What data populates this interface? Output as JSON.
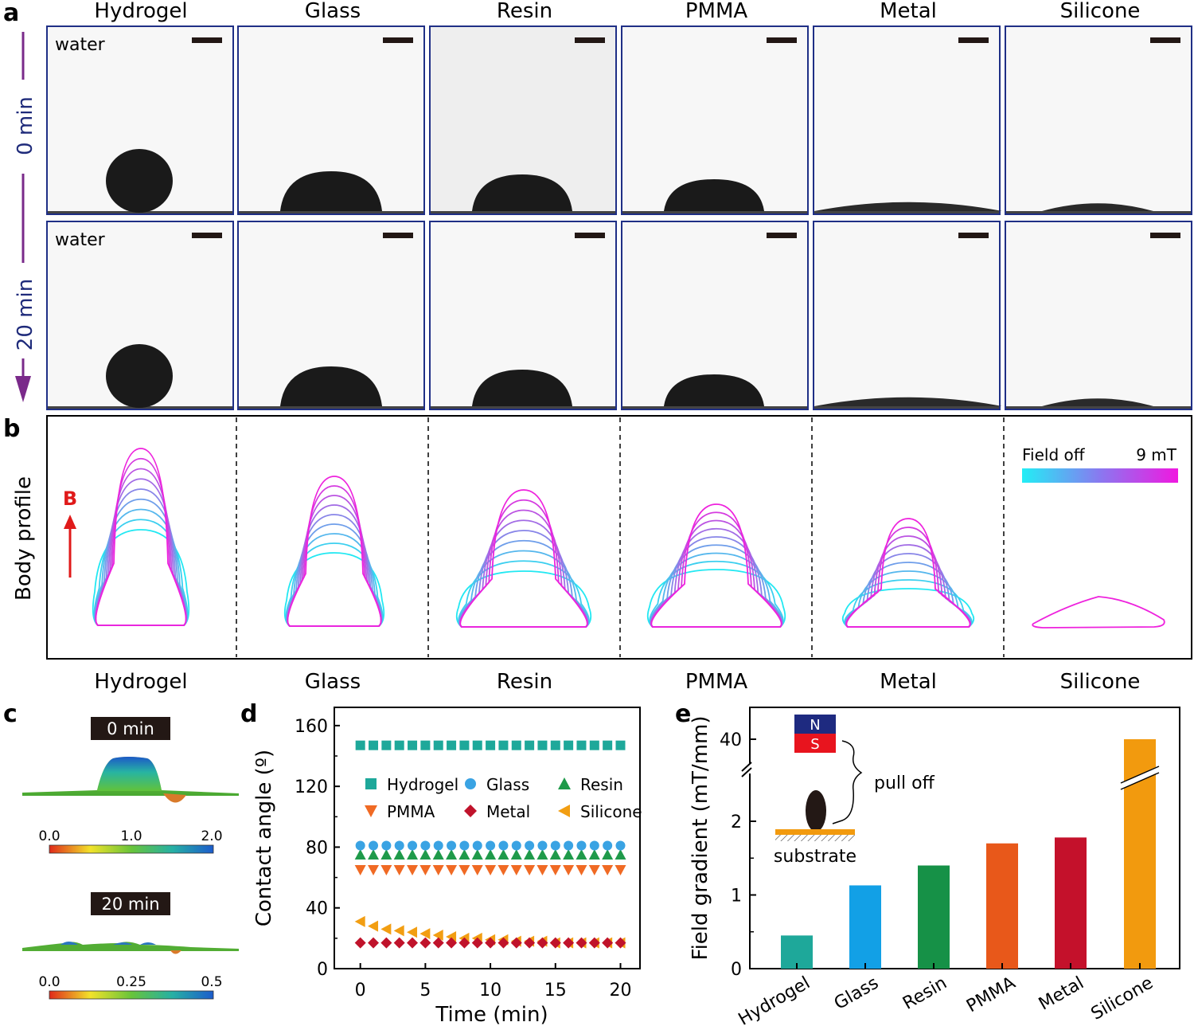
{
  "panel_labels": {
    "a": "a",
    "b": "b",
    "c": "c",
    "d": "d",
    "e": "e"
  },
  "materials": [
    "Hydrogel",
    "Glass",
    "Resin",
    "PMMA",
    "Metal",
    "Silicone"
  ],
  "panel_a": {
    "row_labels": [
      "0 min",
      "20 min"
    ],
    "liquid_label": "water"
  },
  "panel_b": {
    "ylabel": "Body profile",
    "field_label": "B",
    "colorbar_left": "Field off",
    "colorbar_right": "9 mT",
    "colors": {
      "field_off": "#22e8f2",
      "field_max": "#ee22dd"
    }
  },
  "panel_c": {
    "maps": [
      {
        "time": "0 min",
        "scale": [
          "0.0",
          "1.0",
          "2.0"
        ]
      },
      {
        "time": "20 min",
        "scale": [
          "0.0",
          "0.25",
          "0.5"
        ]
      }
    ]
  },
  "panel_e_inset": {
    "north": "N",
    "south": "S",
    "action": "pull off",
    "substrate": "substrate"
  },
  "chart_data": [
    {
      "type": "scatter",
      "panel": "d",
      "xlabel": "Time (min)",
      "ylabel": "Contact angle (º)",
      "xlim": [
        -2,
        21.5
      ],
      "ylim": [
        0,
        172
      ],
      "xticks": [
        "0",
        "5",
        "10",
        "15",
        "20"
      ],
      "yticks": [
        "0",
        "40",
        "80",
        "120",
        "160"
      ],
      "x": [
        0,
        1,
        2,
        3,
        4,
        5,
        6,
        7,
        8,
        9,
        10,
        11,
        12,
        13,
        14,
        15,
        16,
        17,
        18,
        19,
        20
      ],
      "series": [
        {
          "name": "Hydrogel",
          "marker": "square",
          "color": "#1ea89a",
          "values": [
            147,
            147,
            147,
            147,
            147,
            147,
            147,
            147,
            147,
            147,
            147,
            147,
            147,
            147,
            147,
            147,
            147,
            147,
            147,
            147,
            147
          ]
        },
        {
          "name": "Glass",
          "marker": "circle",
          "color": "#3aa3e3",
          "values": [
            81,
            81,
            81,
            81,
            81,
            81,
            81,
            81,
            81,
            81,
            81,
            81,
            81,
            81,
            81,
            81,
            81,
            81,
            81,
            81,
            81
          ]
        },
        {
          "name": "Resin",
          "marker": "triangle-up",
          "color": "#1f9a4a",
          "values": [
            75,
            75,
            75,
            75,
            75,
            75,
            75,
            75,
            75,
            75,
            75,
            75,
            75,
            75,
            75,
            75,
            75,
            75,
            75,
            75,
            75
          ]
        },
        {
          "name": "PMMA",
          "marker": "triangle-down",
          "color": "#f06a24",
          "values": [
            65,
            65,
            65,
            65,
            65,
            65,
            65,
            65,
            65,
            65,
            65,
            65,
            65,
            65,
            65,
            65,
            65,
            65,
            65,
            65,
            65
          ]
        },
        {
          "name": "Metal",
          "marker": "diamond",
          "color": "#c0132b",
          "values": [
            17,
            17,
            17,
            17,
            17,
            17,
            17,
            17,
            17,
            17,
            17,
            17,
            17,
            17,
            17,
            17,
            17,
            17,
            17,
            17,
            17
          ]
        },
        {
          "name": "Silicone",
          "marker": "triangle-left",
          "color": "#f29e12",
          "values": [
            31,
            28,
            26,
            25,
            24,
            23,
            22,
            21,
            20,
            20,
            19,
            19,
            18,
            18,
            18,
            17,
            17,
            17,
            17,
            17,
            17
          ]
        }
      ],
      "legend": "inside-middle"
    },
    {
      "type": "bar",
      "panel": "e",
      "xlabel": "",
      "ylabel": "Field gradient (mT/mm)",
      "categories": [
        "Hydrogel",
        "Glass",
        "Resin",
        "PMMA",
        "Metal",
        "Silicone"
      ],
      "values": [
        0.45,
        1.13,
        1.4,
        1.7,
        1.78,
        40
      ],
      "colors": [
        "#1ea89a",
        "#12a0e6",
        "#169147",
        "#e8581a",
        "#c4112b",
        "#f29a0e"
      ],
      "yticks": [
        "0",
        "1",
        "2",
        "40"
      ],
      "axis_break": "between 2 and 40"
    }
  ]
}
